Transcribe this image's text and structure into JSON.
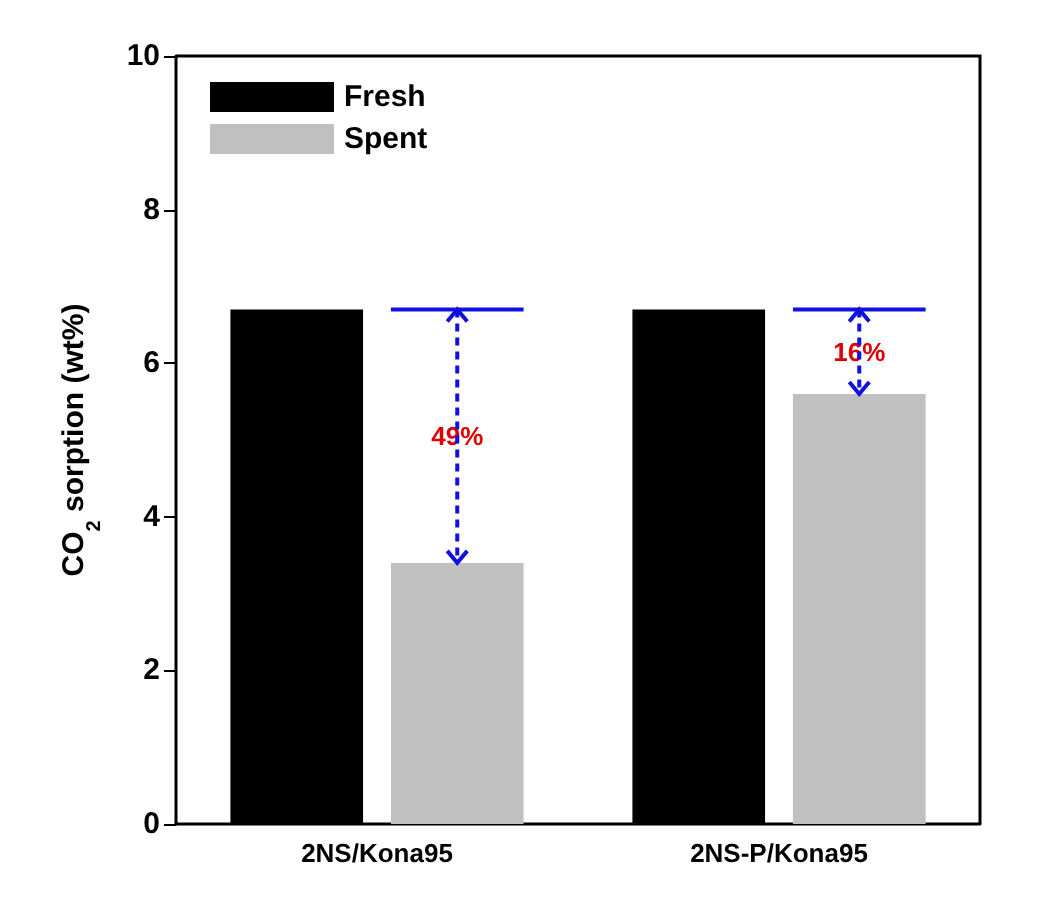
{
  "chart_data": {
    "type": "bar",
    "ylabel": "CO$_{2}$ sorption (wt%)",
    "categories": [
      "2NS/Kona95",
      "2NS-P/Kona95"
    ],
    "series": [
      {
        "name": "Fresh",
        "color": "#000000",
        "values": [
          6.7,
          6.7
        ]
      },
      {
        "name": "Spent",
        "color": "#c0c0c0",
        "values": [
          3.4,
          5.6
        ]
      }
    ],
    "ylim": [
      0,
      10
    ],
    "yticks": [
      0,
      2,
      4,
      6,
      8,
      10
    ],
    "grid": false,
    "legend": "top left",
    "annotations": [
      "49%",
      "16%"
    ]
  }
}
